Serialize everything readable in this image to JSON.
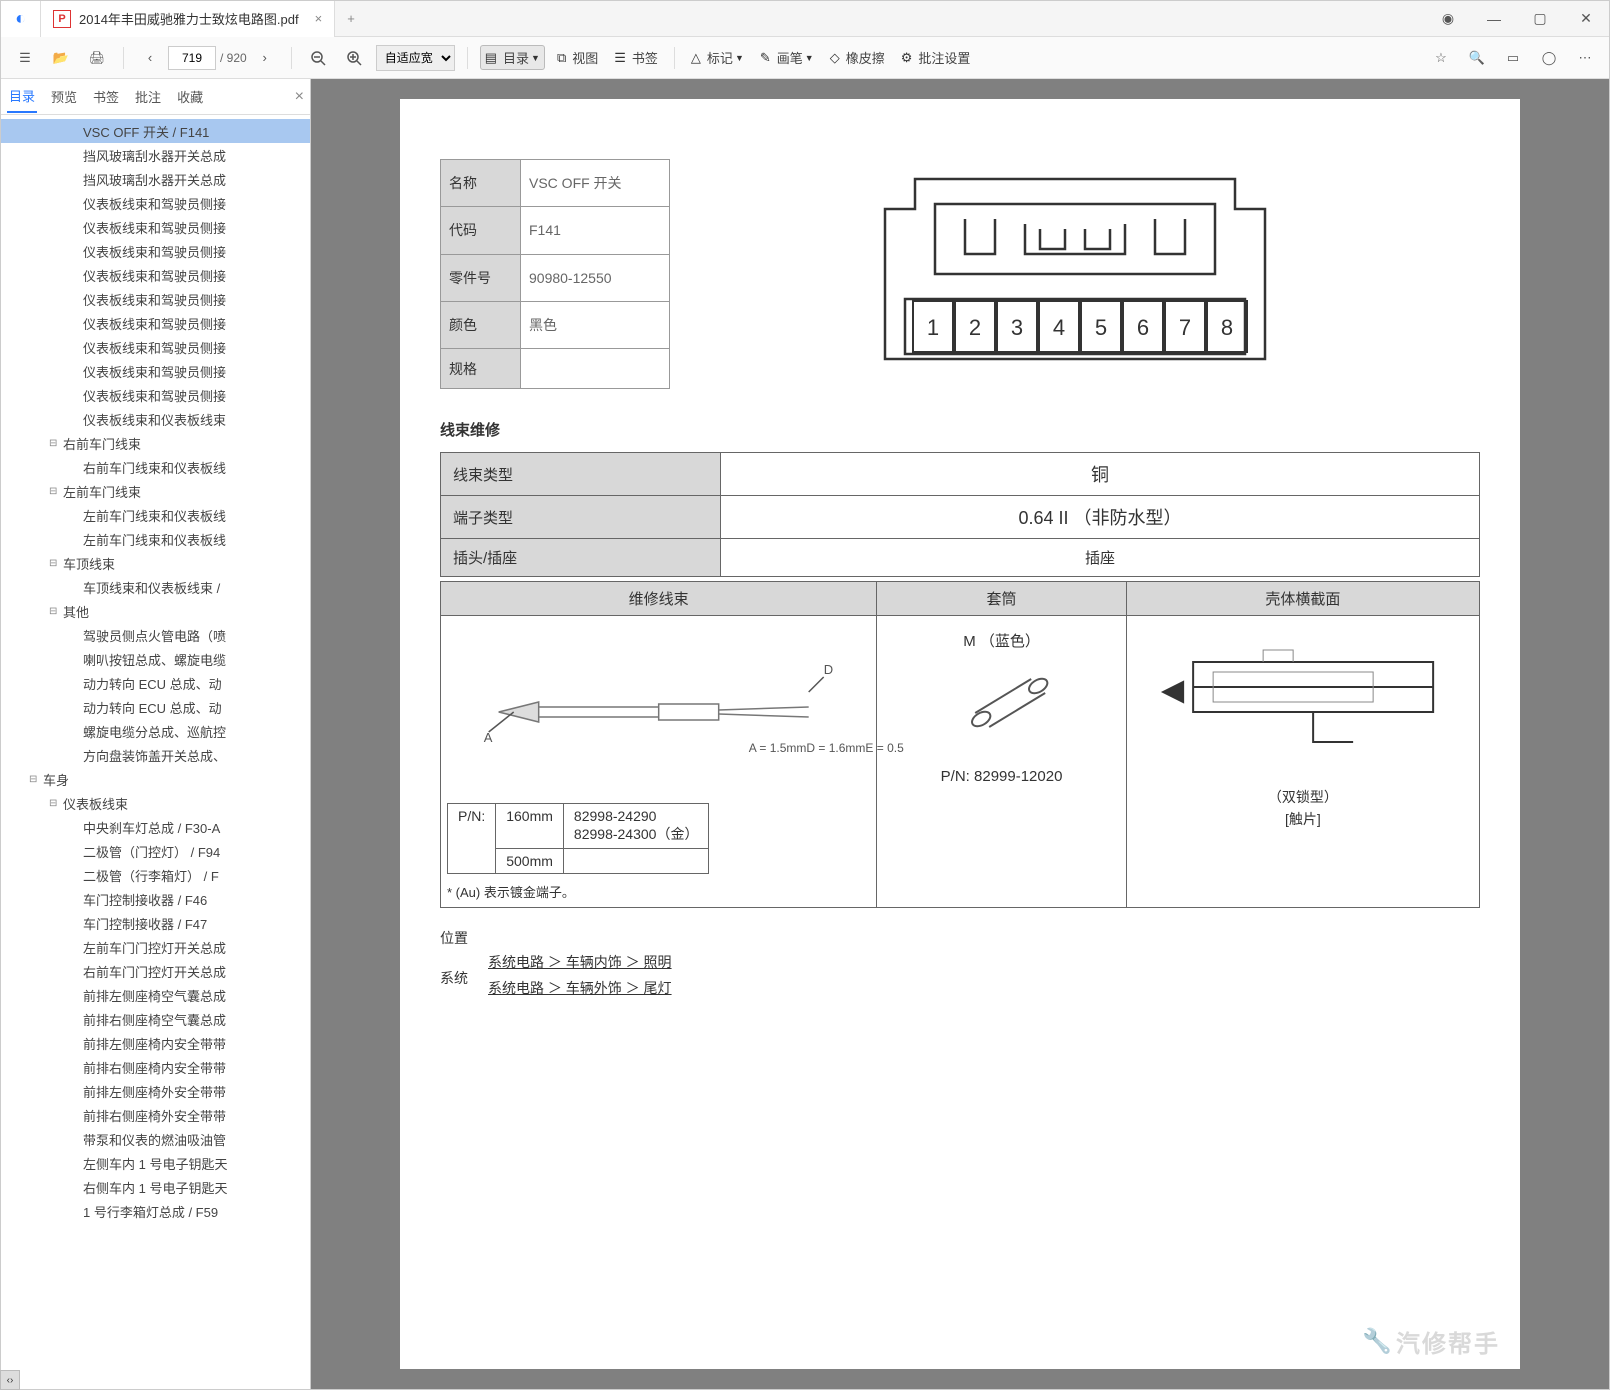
{
  "tab": {
    "title": "2014年丰田威驰雅力士致炫电路图.pdf"
  },
  "toolbar": {
    "page_current": "719",
    "page_total": "/ 920",
    "zoom": "自适应宽",
    "outline": "目录",
    "view": "视图",
    "bookmark": "书签",
    "mark": "标记",
    "brush": "画笔",
    "eraser": "橡皮擦",
    "batch": "批注设置"
  },
  "sidebar": {
    "tabs": [
      "目录",
      "预览",
      "书签",
      "批注",
      "收藏"
    ],
    "items": [
      {
        "indent": 3,
        "label": "VSC OFF 开关 / F141",
        "selected": true
      },
      {
        "indent": 3,
        "label": "挡风玻璃刮水器开关总成"
      },
      {
        "indent": 3,
        "label": "挡风玻璃刮水器开关总成"
      },
      {
        "indent": 3,
        "label": "仪表板线束和驾驶员侧接"
      },
      {
        "indent": 3,
        "label": "仪表板线束和驾驶员侧接"
      },
      {
        "indent": 3,
        "label": "仪表板线束和驾驶员侧接"
      },
      {
        "indent": 3,
        "label": "仪表板线束和驾驶员侧接"
      },
      {
        "indent": 3,
        "label": "仪表板线束和驾驶员侧接"
      },
      {
        "indent": 3,
        "label": "仪表板线束和驾驶员侧接"
      },
      {
        "indent": 3,
        "label": "仪表板线束和驾驶员侧接"
      },
      {
        "indent": 3,
        "label": "仪表板线束和驾驶员侧接"
      },
      {
        "indent": 3,
        "label": "仪表板线束和驾驶员侧接"
      },
      {
        "indent": 3,
        "label": "仪表板线束和仪表板线束"
      },
      {
        "indent": 2,
        "label": "右前车门线束",
        "toggle": "⊟"
      },
      {
        "indent": 3,
        "label": "右前车门线束和仪表板线"
      },
      {
        "indent": 2,
        "label": "左前车门线束",
        "toggle": "⊟"
      },
      {
        "indent": 3,
        "label": "左前车门线束和仪表板线"
      },
      {
        "indent": 3,
        "label": "左前车门线束和仪表板线"
      },
      {
        "indent": 2,
        "label": "车顶线束",
        "toggle": "⊟"
      },
      {
        "indent": 3,
        "label": "车顶线束和仪表板线束 /"
      },
      {
        "indent": 2,
        "label": "其他",
        "toggle": "⊟"
      },
      {
        "indent": 3,
        "label": "驾驶员侧点火管电路（喷"
      },
      {
        "indent": 3,
        "label": "喇叭按钮总成、螺旋电缆"
      },
      {
        "indent": 3,
        "label": "动力转向 ECU 总成、动"
      },
      {
        "indent": 3,
        "label": "动力转向 ECU 总成、动"
      },
      {
        "indent": 3,
        "label": "螺旋电缆分总成、巡航控"
      },
      {
        "indent": 3,
        "label": "方向盘装饰盖开关总成、"
      },
      {
        "indent": 1,
        "label": "车身",
        "toggle": "⊟"
      },
      {
        "indent": 2,
        "label": "仪表板线束",
        "toggle": "⊟"
      },
      {
        "indent": 3,
        "label": "中央刹车灯总成 / F30-A"
      },
      {
        "indent": 3,
        "label": "二极管（门控灯） / F94"
      },
      {
        "indent": 3,
        "label": "二极管（行李箱灯） / F"
      },
      {
        "indent": 3,
        "label": "车门控制接收器 / F46"
      },
      {
        "indent": 3,
        "label": "车门控制接收器 / F47"
      },
      {
        "indent": 3,
        "label": "左前车门门控灯开关总成"
      },
      {
        "indent": 3,
        "label": "右前车门门控灯开关总成"
      },
      {
        "indent": 3,
        "label": "前排左侧座椅空气囊总成"
      },
      {
        "indent": 3,
        "label": "前排右侧座椅空气囊总成"
      },
      {
        "indent": 3,
        "label": "前排左侧座椅内安全带带"
      },
      {
        "indent": 3,
        "label": "前排右侧座椅内安全带带"
      },
      {
        "indent": 3,
        "label": "前排左侧座椅外安全带带"
      },
      {
        "indent": 3,
        "label": "前排右侧座椅外安全带带"
      },
      {
        "indent": 3,
        "label": "带泵和仪表的燃油吸油管"
      },
      {
        "indent": 3,
        "label": "左侧车内 1 号电子钥匙天"
      },
      {
        "indent": 3,
        "label": "右侧车内 1 号电子钥匙天"
      },
      {
        "indent": 3,
        "label": "1 号行李箱灯总成 / F59"
      }
    ]
  },
  "doc": {
    "info": {
      "name_label": "名称",
      "name_value": "VSC OFF 开关",
      "code_label": "代码",
      "code_value": "F141",
      "part_label": "零件号",
      "part_value": "90980-12550",
      "color_label": "颜色",
      "color_value": "黑色",
      "spec_label": "规格",
      "spec_value": ""
    },
    "pins": [
      "1",
      "2",
      "3",
      "4",
      "5",
      "6",
      "7",
      "8"
    ],
    "wire_title": "线束维修",
    "wire_table": {
      "type_label": "线束类型",
      "type_value": "铜",
      "term_label": "端子类型",
      "term_value": "0.64 II （非防水型）",
      "plug_label": "插头/插座",
      "plug_value": "插座"
    },
    "repair": {
      "h1": "维修线束",
      "h2": "套筒",
      "h3": "壳体横截面",
      "sleeve_label": "M （蓝色）",
      "sleeve_pn": "P/N: 82999-12020",
      "housing_sub1": "（双锁型）",
      "housing_sub2": "[触片]",
      "dims": "A = 1.5mm\nD = 1.6mm\nE = 0.5",
      "pn_label": "P/N:",
      "len1": "160mm",
      "pn1a": "82998-24290",
      "pn1b": "82998-24300（金）",
      "len2": "500mm",
      "note": "* (Au) 表示镀金端子。"
    },
    "position": {
      "label": "位置",
      "sys_label": "系统",
      "link1": "系统电路 ＞ 车辆内饰 ＞ 照明",
      "link2": "系统电路 ＞ 车辆外饰 ＞ 尾灯"
    },
    "watermark": "汽修帮手"
  }
}
